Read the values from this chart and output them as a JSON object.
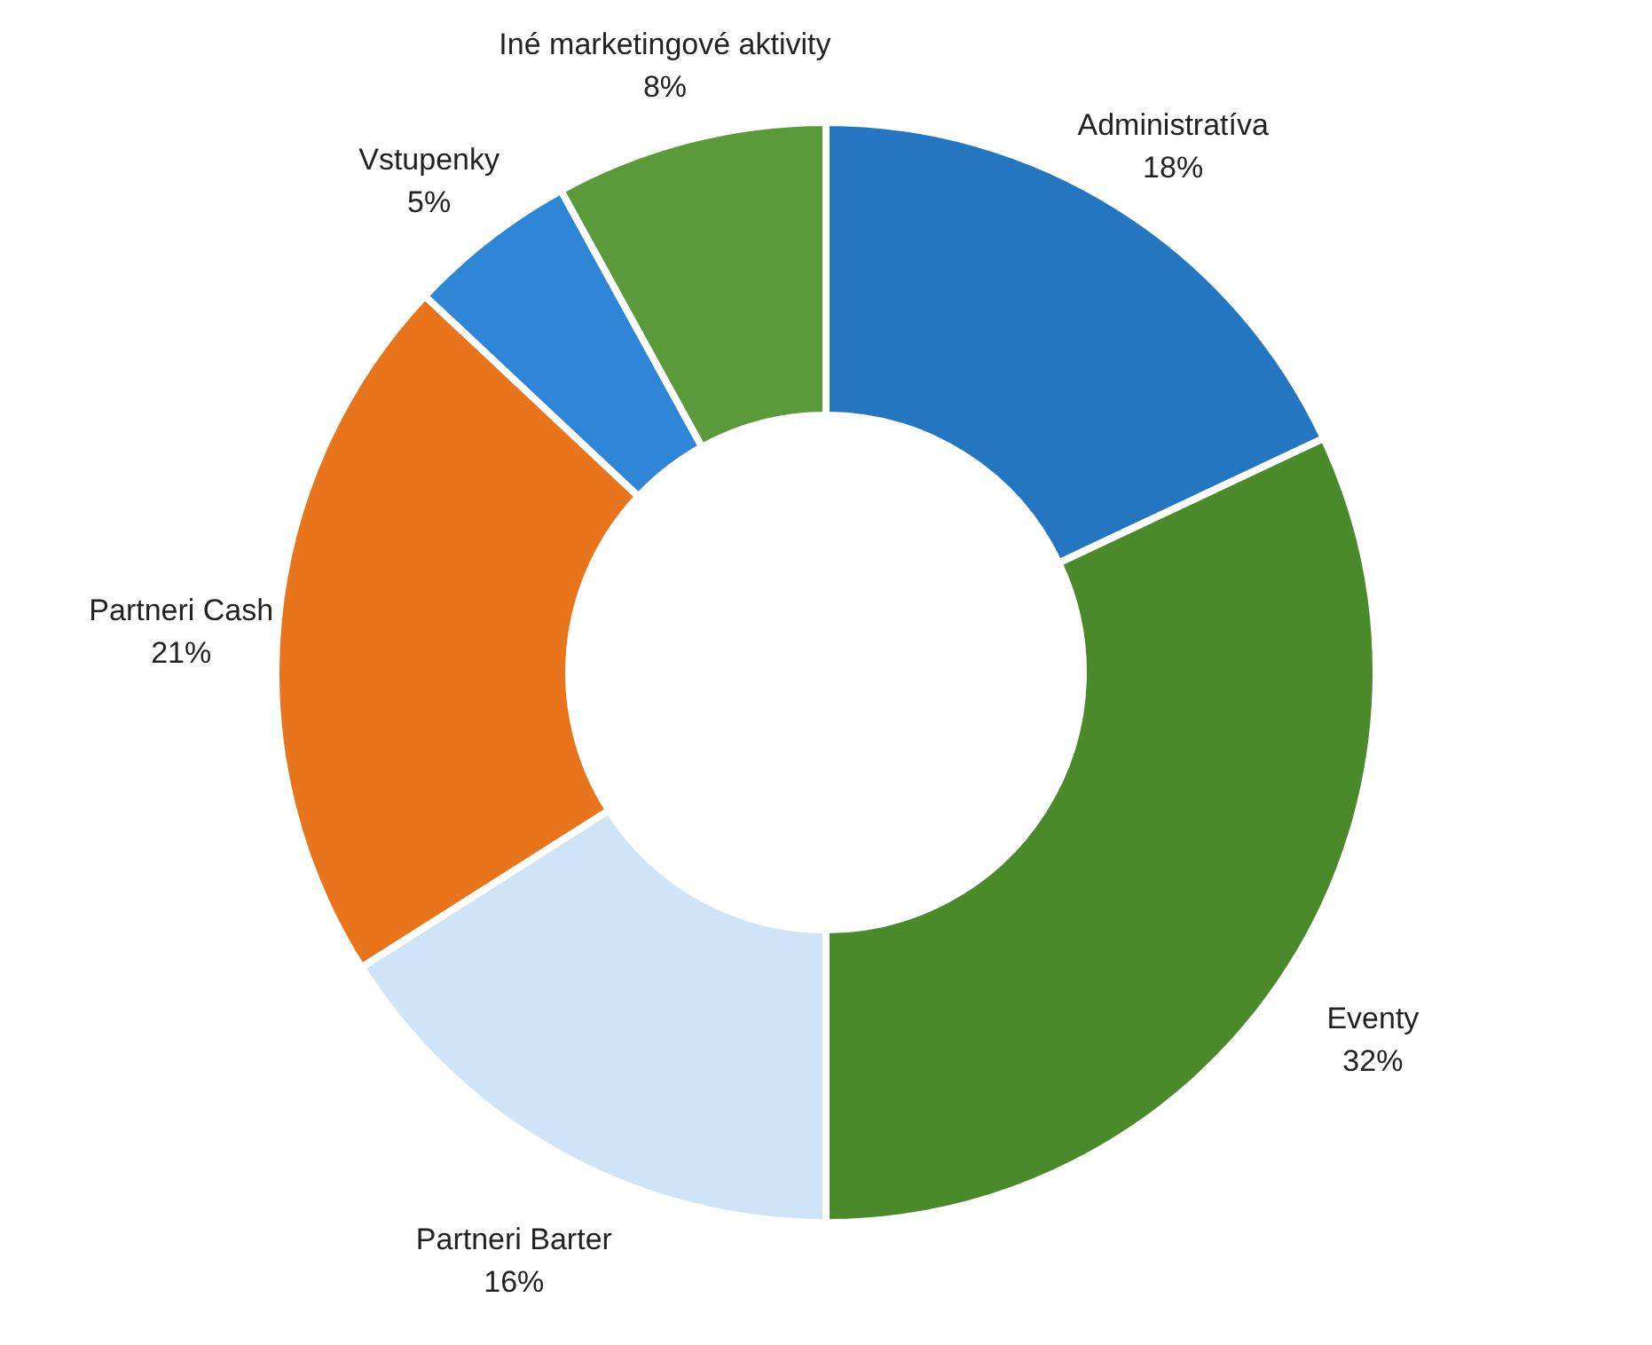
{
  "chart_data": {
    "type": "donut",
    "categories": [
      "Administratíva",
      "Eventy",
      "Partneri Barter",
      "Partneri Cash",
      "Vstupenky",
      "Iné marketingové aktivity"
    ],
    "values": [
      18,
      32,
      16,
      21,
      5,
      8
    ],
    "value_labels": [
      "18%",
      "32%",
      "16%",
      "21%",
      "5%",
      "8%"
    ],
    "colors": [
      "#2576c0",
      "#4a8a2a",
      "#cfe5f7",
      "#e8741c",
      "#2f86d6",
      "#5a9a3a"
    ]
  }
}
